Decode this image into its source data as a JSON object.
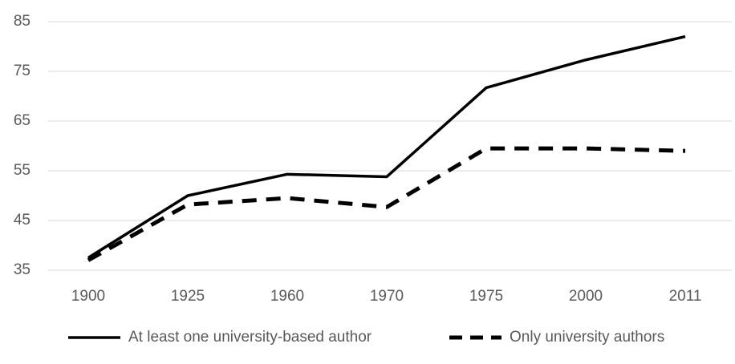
{
  "chart_data": {
    "type": "line",
    "categories": [
      "1900",
      "1925",
      "1960",
      "1970",
      "1975",
      "2000",
      "2011"
    ],
    "series": [
      {
        "name": "At least one university-based author",
        "color": "#000000",
        "dash": "solid",
        "values": [
          37.5,
          50,
          54.3,
          53.8,
          71.7,
          77.3,
          82
        ]
      },
      {
        "name": "Only university authors",
        "color": "#000000",
        "dash": "dashed",
        "values": [
          37,
          48.2,
          49.5,
          47.7,
          59.5,
          59.5,
          59
        ]
      }
    ],
    "ylim": [
      35,
      85
    ],
    "yticks": [
      35,
      45,
      55,
      65,
      75,
      85
    ],
    "grid": true,
    "legend": "bottom"
  }
}
